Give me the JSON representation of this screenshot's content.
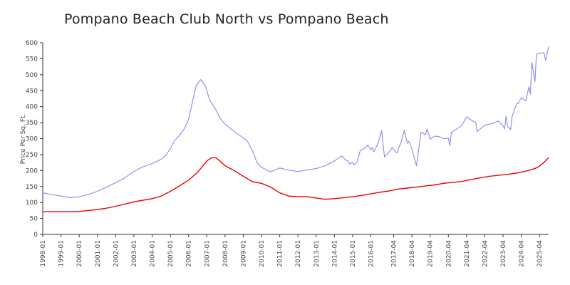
{
  "chart_data": {
    "type": "line",
    "title": "Pompano Beach Club North vs Pompano Beach",
    "xlabel": "",
    "ylabel": "Price Per Sq. Ft.",
    "ylim": [
      0,
      600
    ],
    "yticks": [
      0,
      50,
      100,
      150,
      200,
      250,
      300,
      350,
      400,
      450,
      500,
      550,
      600
    ],
    "xlim": [
      "1998-01",
      "2025-10"
    ],
    "xticks": [
      "1998-01",
      "1999-01",
      "2000-01",
      "2001-01",
      "2002-01",
      "2003-01",
      "2004-01",
      "2005-01",
      "2006-01",
      "2007-01",
      "2008-01",
      "2009-01",
      "2010-01",
      "2011-01",
      "2012-01",
      "2013-01",
      "2014-01",
      "2015-01",
      "2016-01",
      "2017-04",
      "2018-04",
      "2019-04",
      "2020-04",
      "2021-04",
      "2022-04",
      "2023-04",
      "2024-04",
      "2025-04"
    ],
    "grid": false,
    "legend": "none",
    "series": [
      {
        "color": "#8888ee",
        "points": [
          [
            "1998-01",
            130
          ],
          [
            "1998-07",
            125
          ],
          [
            "1999-01",
            120
          ],
          [
            "1999-07",
            115
          ],
          [
            "2000-01",
            118
          ],
          [
            "2000-07",
            125
          ],
          [
            "2001-01",
            135
          ],
          [
            "2001-07",
            148
          ],
          [
            "2002-01",
            162
          ],
          [
            "2002-07",
            177
          ],
          [
            "2003-01",
            197
          ],
          [
            "2003-07",
            212
          ],
          [
            "2004-01",
            222
          ],
          [
            "2004-07",
            235
          ],
          [
            "2004-10",
            248
          ],
          [
            "2005-01",
            268
          ],
          [
            "2005-04",
            295
          ],
          [
            "2005-07",
            310
          ],
          [
            "2005-10",
            330
          ],
          [
            "2006-01",
            360
          ],
          [
            "2006-04",
            425
          ],
          [
            "2006-06",
            465
          ],
          [
            "2006-09",
            485
          ],
          [
            "2006-12",
            465
          ],
          [
            "2007-03",
            420
          ],
          [
            "2007-07",
            390
          ],
          [
            "2007-10",
            362
          ],
          [
            "2008-01",
            345
          ],
          [
            "2008-07",
            322
          ],
          [
            "2009-01",
            302
          ],
          [
            "2009-04",
            290
          ],
          [
            "2009-07",
            262
          ],
          [
            "2009-10",
            225
          ],
          [
            "2010-01",
            210
          ],
          [
            "2010-07",
            196
          ],
          [
            "2011-01",
            208
          ],
          [
            "2011-07",
            201
          ],
          [
            "2012-01",
            197
          ],
          [
            "2012-07",
            202
          ],
          [
            "2013-01",
            206
          ],
          [
            "2013-07",
            215
          ],
          [
            "2014-01",
            230
          ],
          [
            "2014-04",
            240
          ],
          [
            "2014-06",
            246
          ],
          [
            "2014-08",
            234
          ],
          [
            "2014-10",
            230
          ],
          [
            "2014-11",
            220
          ],
          [
            "2015-01",
            226
          ],
          [
            "2015-02",
            218
          ],
          [
            "2015-04",
            228
          ],
          [
            "2015-06",
            262
          ],
          [
            "2015-09",
            270
          ],
          [
            "2015-11",
            280
          ],
          [
            "2016-01",
            265
          ],
          [
            "2016-02",
            272
          ],
          [
            "2016-03",
            258
          ],
          [
            "2016-06",
            290
          ],
          [
            "2016-08",
            325
          ],
          [
            "2016-10",
            242
          ],
          [
            "2017-01",
            258
          ],
          [
            "2017-03",
            272
          ],
          [
            "2017-06",
            255
          ],
          [
            "2017-09",
            290
          ],
          [
            "2017-11",
            325
          ],
          [
            "2018-01",
            285
          ],
          [
            "2018-02",
            292
          ],
          [
            "2018-04",
            268
          ],
          [
            "2018-07",
            215
          ],
          [
            "2018-10",
            320
          ],
          [
            "2019-01",
            312
          ],
          [
            "2019-02",
            330
          ],
          [
            "2019-04",
            298
          ],
          [
            "2019-07",
            308
          ],
          [
            "2019-10",
            306
          ],
          [
            "2020-01",
            300
          ],
          [
            "2020-02",
            300
          ],
          [
            "2020-04",
            302
          ],
          [
            "2020-05",
            278
          ],
          [
            "2020-06",
            320
          ],
          [
            "2020-09",
            328
          ],
          [
            "2021-01",
            342
          ],
          [
            "2021-04",
            368
          ],
          [
            "2021-07",
            358
          ],
          [
            "2021-10",
            350
          ],
          [
            "2021-11",
            322
          ],
          [
            "2022-01",
            330
          ],
          [
            "2022-04",
            342
          ],
          [
            "2022-07",
            345
          ],
          [
            "2022-10",
            350
          ],
          [
            "2023-01",
            355
          ],
          [
            "2023-04",
            340
          ],
          [
            "2023-05",
            330
          ],
          [
            "2023-06",
            370
          ],
          [
            "2023-07",
            338
          ],
          [
            "2023-09",
            328
          ],
          [
            "2023-10",
            370
          ],
          [
            "2024-01",
            410
          ],
          [
            "2024-02",
            410
          ],
          [
            "2024-04",
            428
          ],
          [
            "2024-07",
            418
          ],
          [
            "2024-09",
            462
          ],
          [
            "2024-10",
            440
          ],
          [
            "2024-11",
            538
          ],
          [
            "2025-01",
            478
          ],
          [
            "2025-02",
            565
          ],
          [
            "2025-04",
            567
          ],
          [
            "2025-06",
            568
          ],
          [
            "2025-07",
            568
          ],
          [
            "2025-08",
            545
          ],
          [
            "2025-10",
            588
          ]
        ]
      },
      {
        "color": "#ee0000",
        "points": [
          [
            "1998-01",
            71
          ],
          [
            "1998-07",
            71
          ],
          [
            "1999-01",
            71
          ],
          [
            "1999-07",
            71
          ],
          [
            "2000-01",
            72
          ],
          [
            "2000-07",
            75
          ],
          [
            "2001-01",
            78
          ],
          [
            "2001-07",
            82
          ],
          [
            "2002-01",
            88
          ],
          [
            "2002-07",
            95
          ],
          [
            "2003-01",
            102
          ],
          [
            "2003-07",
            107
          ],
          [
            "2004-01",
            112
          ],
          [
            "2004-07",
            120
          ],
          [
            "2005-01",
            135
          ],
          [
            "2005-07",
            152
          ],
          [
            "2006-01",
            170
          ],
          [
            "2006-07",
            195
          ],
          [
            "2007-01",
            230
          ],
          [
            "2007-04",
            240
          ],
          [
            "2007-07",
            240
          ],
          [
            "2007-10",
            228
          ],
          [
            "2008-01",
            215
          ],
          [
            "2008-07",
            200
          ],
          [
            "2009-01",
            182
          ],
          [
            "2009-07",
            165
          ],
          [
            "2010-01",
            160
          ],
          [
            "2010-07",
            148
          ],
          [
            "2011-01",
            130
          ],
          [
            "2011-07",
            120
          ],
          [
            "2012-01",
            118
          ],
          [
            "2012-07",
            118
          ],
          [
            "2013-01",
            114
          ],
          [
            "2013-07",
            110
          ],
          [
            "2014-01",
            112
          ],
          [
            "2014-07",
            115
          ],
          [
            "2015-01",
            118
          ],
          [
            "2015-07",
            122
          ],
          [
            "2016-01",
            127
          ],
          [
            "2016-07",
            132
          ],
          [
            "2017-01",
            136
          ],
          [
            "2017-07",
            142
          ],
          [
            "2018-01",
            145
          ],
          [
            "2018-07",
            148
          ],
          [
            "2019-01",
            152
          ],
          [
            "2019-07",
            155
          ],
          [
            "2020-01",
            160
          ],
          [
            "2020-07",
            163
          ],
          [
            "2021-01",
            166
          ],
          [
            "2021-07",
            172
          ],
          [
            "2022-01",
            177
          ],
          [
            "2022-07",
            182
          ],
          [
            "2023-01",
            185
          ],
          [
            "2023-07",
            188
          ],
          [
            "2024-01",
            192
          ],
          [
            "2024-07",
            198
          ],
          [
            "2025-01",
            206
          ],
          [
            "2025-04",
            214
          ],
          [
            "2025-07",
            226
          ],
          [
            "2025-10",
            240
          ]
        ]
      }
    ]
  }
}
